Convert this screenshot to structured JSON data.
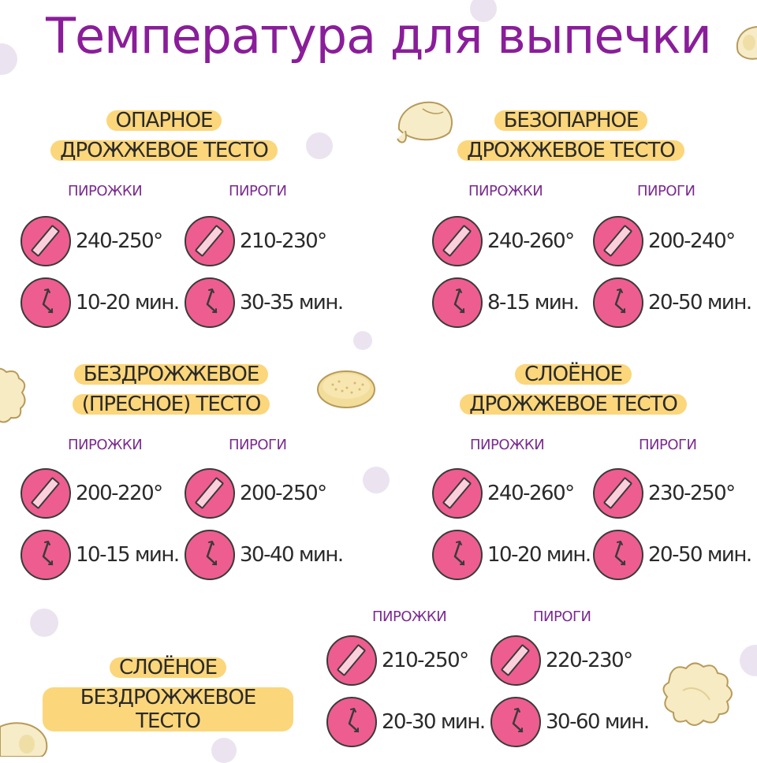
{
  "title": "Температура для выпечки",
  "icons": {
    "temperature": "thermometer-icon",
    "time": "clock-icon"
  },
  "colors": {
    "title": "#8a1d9a",
    "highlight": "#fbd67b",
    "icon_fill": "#ee5d8f",
    "category": "#7a2a8f"
  },
  "sections": [
    {
      "heading": [
        "ОПАРНОЕ",
        "ДРОЖЖЕВОЕ ТЕСТО"
      ],
      "pirozhki": {
        "label": "ПИРОЖКИ",
        "temp": "240-250°",
        "time": "10-20 мин."
      },
      "pirogi": {
        "label": "ПИРОГИ",
        "temp": "210-230°",
        "time": "30-35 мин."
      }
    },
    {
      "heading": [
        "БЕЗОПАРНОЕ",
        "ДРОЖЖЕВОЕ ТЕСТО"
      ],
      "pirozhki": {
        "label": "ПИРОЖКИ",
        "temp": "240-260°",
        "time": "8-15 мин."
      },
      "pirogi": {
        "label": "ПИРОГИ",
        "temp": "200-240°",
        "time": "20-50 мин."
      }
    },
    {
      "heading": [
        "БЕЗДРОЖЖЕВОЕ",
        "(ПРЕСНОЕ) ТЕСТО"
      ],
      "pirozhki": {
        "label": "ПИРОЖКИ",
        "temp": "200-220°",
        "time": "10-15 мин."
      },
      "pirogi": {
        "label": "ПИРОГИ",
        "temp": "200-250°",
        "time": "30-40 мин."
      }
    },
    {
      "heading": [
        "СЛОЁНОЕ",
        "ДРОЖЖЕВОЕ ТЕСТО"
      ],
      "pirozhki": {
        "label": "ПИРОЖКИ",
        "temp": "240-260°",
        "time": "10-20 мин."
      },
      "pirogi": {
        "label": "ПИРОГИ",
        "temp": "230-250°",
        "time": "20-50 мин."
      }
    },
    {
      "heading": [
        "СЛОЁНОЕ",
        "БЕЗДРОЖЖЕВОЕ ТЕСТО"
      ],
      "pirozhki": {
        "label": "ПИРОЖКИ",
        "temp": "210-250°",
        "time": "20-30 мин."
      },
      "pirogi": {
        "label": "ПИРОГИ",
        "temp": "220-230°",
        "time": "30-60 мин."
      }
    }
  ]
}
